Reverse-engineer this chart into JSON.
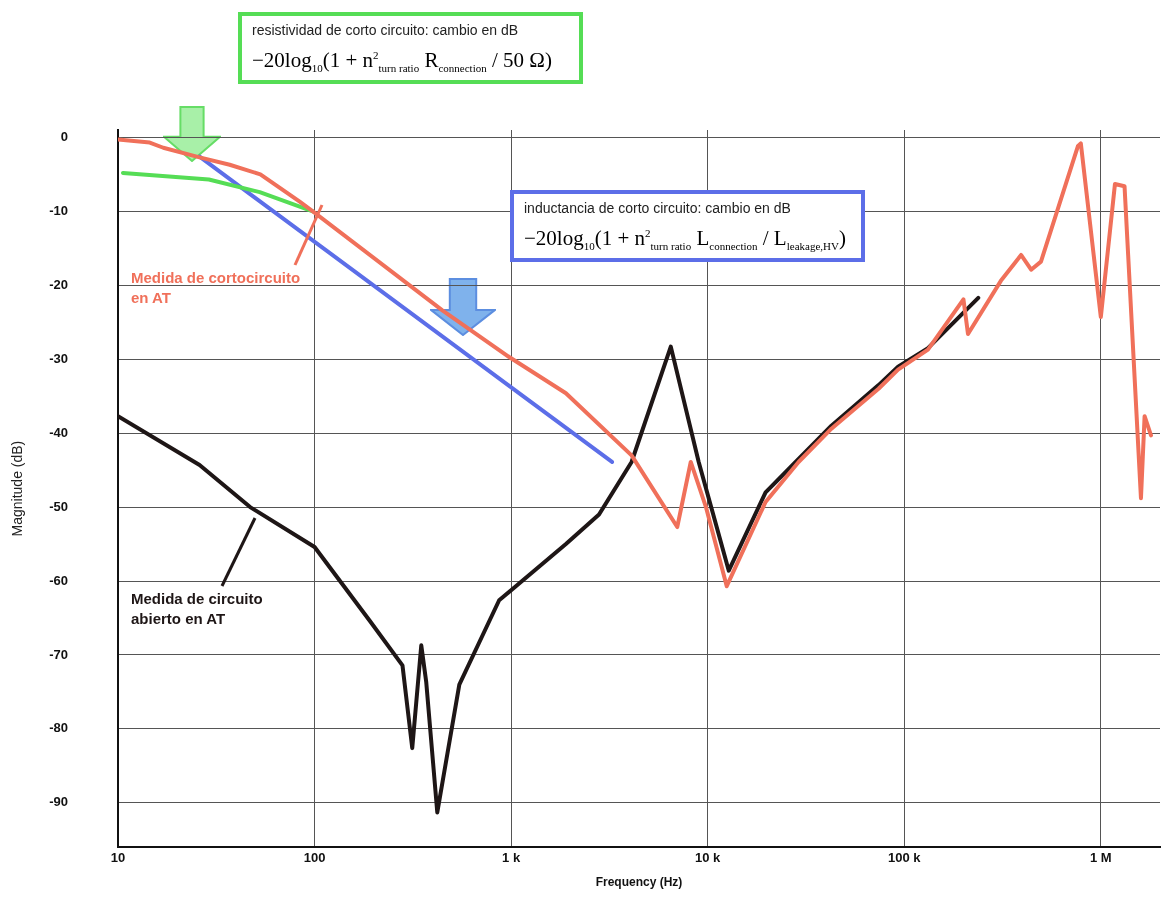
{
  "chart_data": {
    "type": "line",
    "xlabel": "Frequency (Hz)",
    "ylabel": "Magnitude (dB)",
    "log": "x",
    "grid": true,
    "marker": "none",
    "line_style": "solid",
    "xlim": [
      10,
      2000000
    ],
    "ylim": [
      -96,
      1
    ],
    "xticks": [
      10,
      100,
      {
        "value": 1000,
        "label": "1 k"
      },
      {
        "value": 10000,
        "label": "10 k"
      },
      {
        "value": 100000,
        "label": "100 k"
      },
      {
        "value": 1000000,
        "label": "1 M"
      }
    ],
    "yticks": [
      0,
      -10,
      -20,
      -30,
      -40,
      -50,
      -60,
      -70,
      -80,
      -90
    ],
    "series": [
      {
        "color": "#f0705a",
        "x": [
          10,
          14.5,
          17,
          26,
          37,
          53,
          84,
          98,
          447,
          977,
          1900,
          4100,
          7000,
          8200,
          9800,
          12500,
          19700,
          29000,
          42600,
          74000,
          93000,
          132000,
          200000,
          211000,
          310000,
          393000,
          442000,
          496000,
          764000,
          791000,
          1000000,
          1180000,
          1320000,
          1600000,
          1670000,
          1800000
        ],
        "values": [
          -0.3,
          -0.7,
          -1.4,
          -2.7,
          -3.7,
          -5,
          -8.7,
          -10,
          -23.4,
          -29.7,
          -34.6,
          -43,
          -52.7,
          -43.9,
          -50,
          -60.7,
          -49.3,
          -43.9,
          -39.4,
          -34,
          -31.4,
          -28.7,
          -21.9,
          -26.6,
          -19.4,
          -15.9,
          -17.9,
          -16.8,
          -1.2,
          -0.8,
          -24.3,
          -6.3,
          -6.6,
          -48.8,
          -37.7,
          -40.3
        ]
      },
      {
        "color": "#1e1616",
        "x": [
          10,
          26,
          47,
          100,
          190,
          280,
          314,
          349,
          370,
          421,
          545,
          869,
          1900,
          2800,
          4100,
          6490,
          9000,
          12800,
          19700,
          29000,
          42600,
          74000,
          93000,
          132000,
          238000
        ],
        "values": [
          -37.7,
          -44.3,
          -50,
          -55.4,
          -65.3,
          -71.4,
          -82.6,
          -68.7,
          -73.7,
          -91.3,
          -74,
          -62.6,
          -55,
          -51,
          -43.9,
          -28.3,
          -43.9,
          -58.6,
          -48,
          -43.5,
          -39,
          -33.5,
          -31,
          -28.5,
          -21.7
        ]
      },
      {
        "color": "#55dd55",
        "x": [
          10.6,
          29,
          52.6,
          98
        ],
        "values": [
          -4.8,
          -5.7,
          -7.4,
          -10
        ]
      },
      {
        "color": "#5c6ee8",
        "x": [
          26,
          3260
        ],
        "values": [
          -2.6,
          -43.9
        ]
      }
    ],
    "annotations": [
      "resistividad de corto circuito: cambio en dB",
      "−20log$_{10}$(1 + n$^{2}$$_{turn ratio}$ R$_{connection}$ / 50 Ω)",
      "inductancia de corto circuito: cambio en dB",
      "−20log$_{10}$(1 + n$^{2}$$_{turn ratio}$ L$_{connection}$ / L$_{leakage,HV}$)",
      "Medida de cortocircuito en AT",
      "Medida de circuito abierto en AT"
    ]
  }
}
